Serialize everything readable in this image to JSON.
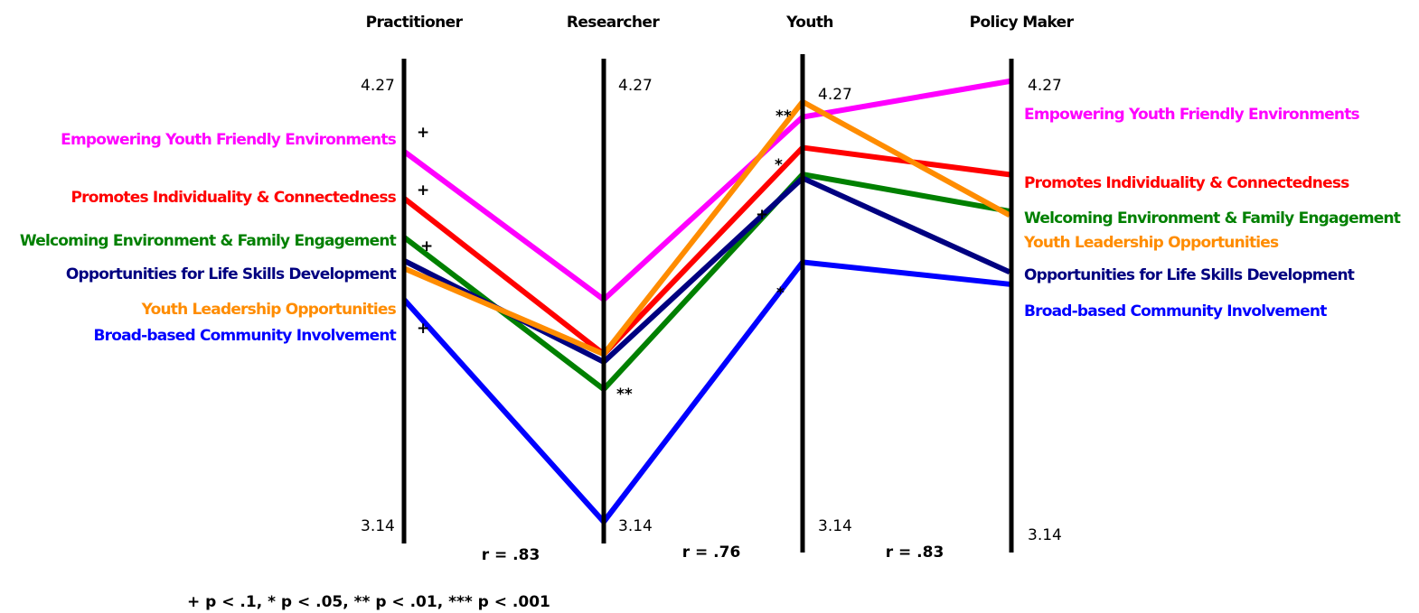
{
  "chart_data": {
    "type": "line",
    "subtype": "parallel-coordinates",
    "axes": [
      "Practitioner",
      "Researcher",
      "Youth",
      "Policy Maker"
    ],
    "ylim": [
      3.14,
      4.27
    ],
    "tick_labels": {
      "top": [
        "4.27",
        "4.27",
        "4.27",
        "4.27"
      ],
      "bottom": [
        "3.14",
        "3.14",
        "3.14",
        "3.14"
      ]
    },
    "series": [
      {
        "name": "Empowering Youth Friendly Environments",
        "color": "#ff00ff",
        "values": [
          4.09,
          3.71,
          4.2,
          4.27
        ]
      },
      {
        "name": "Promotes Individuality & Connectedness",
        "color": "#ff0000",
        "values": [
          3.97,
          3.57,
          4.12,
          4.04
        ]
      },
      {
        "name": "Welcoming Environment & Family Engagement",
        "color": "#008000",
        "values": [
          3.87,
          3.48,
          4.05,
          3.95
        ]
      },
      {
        "name": "Opportunities for Life Skills Development",
        "color": "#000080",
        "values": [
          3.81,
          3.55,
          4.04,
          3.8
        ]
      },
      {
        "name": "Youth Leadership Opportunities",
        "color": "#ff8c00",
        "values": [
          3.79,
          3.57,
          4.24,
          3.94
        ]
      },
      {
        "name": "Broad-based Community Involvement",
        "color": "#0000ff",
        "values": [
          3.71,
          3.14,
          3.82,
          3.77
        ]
      }
    ],
    "significance_markers": {
      "practitioner": [
        "+",
        "+",
        "+",
        "",
        "",
        "+"
      ],
      "researcher": [
        "",
        "",
        "**",
        "",
        "",
        ""
      ],
      "youth": [
        "**",
        "*",
        "+",
        "",
        "",
        "*"
      ]
    },
    "correlations": [
      "r = .83",
      "r = .76",
      "r = .83"
    ],
    "footnote": "+ p < .1, * p < .05, ** p < .01, *** p < .001"
  }
}
